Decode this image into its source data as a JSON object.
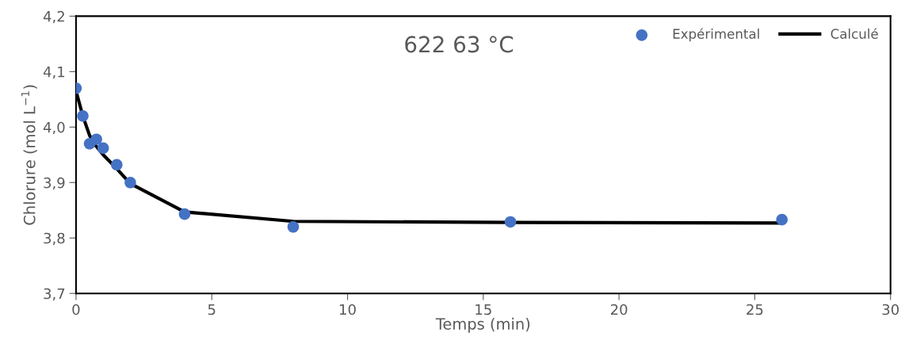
{
  "chart_data": {
    "type": "scatter",
    "title": "622 63 °C",
    "xlabel": "Temps (min)",
    "ylabel": "Chlorure (mol L$^{−1}$)",
    "xlim": [
      0,
      30
    ],
    "xticks": [
      0,
      5,
      10,
      15,
      20,
      25,
      30
    ],
    "ylim": [
      3.7,
      4.2
    ],
    "yticks": [
      {
        "value": 3.7,
        "label": "3,7"
      },
      {
        "value": 3.8,
        "label": "3,8"
      },
      {
        "value": 3.9,
        "label": "3,9"
      },
      {
        "value": 4.0,
        "label": "4,0"
      },
      {
        "value": 4.1,
        "label": "4,1"
      },
      {
        "value": 4.2,
        "label": "4,2"
      }
    ],
    "grid": false,
    "legend": "top right",
    "series": [
      {
        "name": "Expérimental",
        "marker": "circle",
        "color": "#4472c4",
        "x": [
          0,
          0.25,
          0.5,
          0.75,
          1,
          1.5,
          2,
          4,
          8,
          16,
          26
        ],
        "values": [
          4.07,
          4.02,
          3.97,
          3.978,
          3.962,
          3.932,
          3.9,
          3.843,
          3.82,
          3.829,
          3.833
        ]
      },
      {
        "name": "Calculé",
        "type": "line",
        "marker": "none",
        "line_style": "solid",
        "color": "#000000",
        "x": [
          0,
          0.25,
          0.5,
          0.75,
          1,
          1.5,
          2,
          4,
          8,
          16,
          26
        ],
        "values": [
          4.065,
          4.02,
          3.985,
          3.965,
          3.95,
          3.925,
          3.898,
          3.847,
          3.83,
          3.828,
          3.827
        ]
      }
    ]
  }
}
